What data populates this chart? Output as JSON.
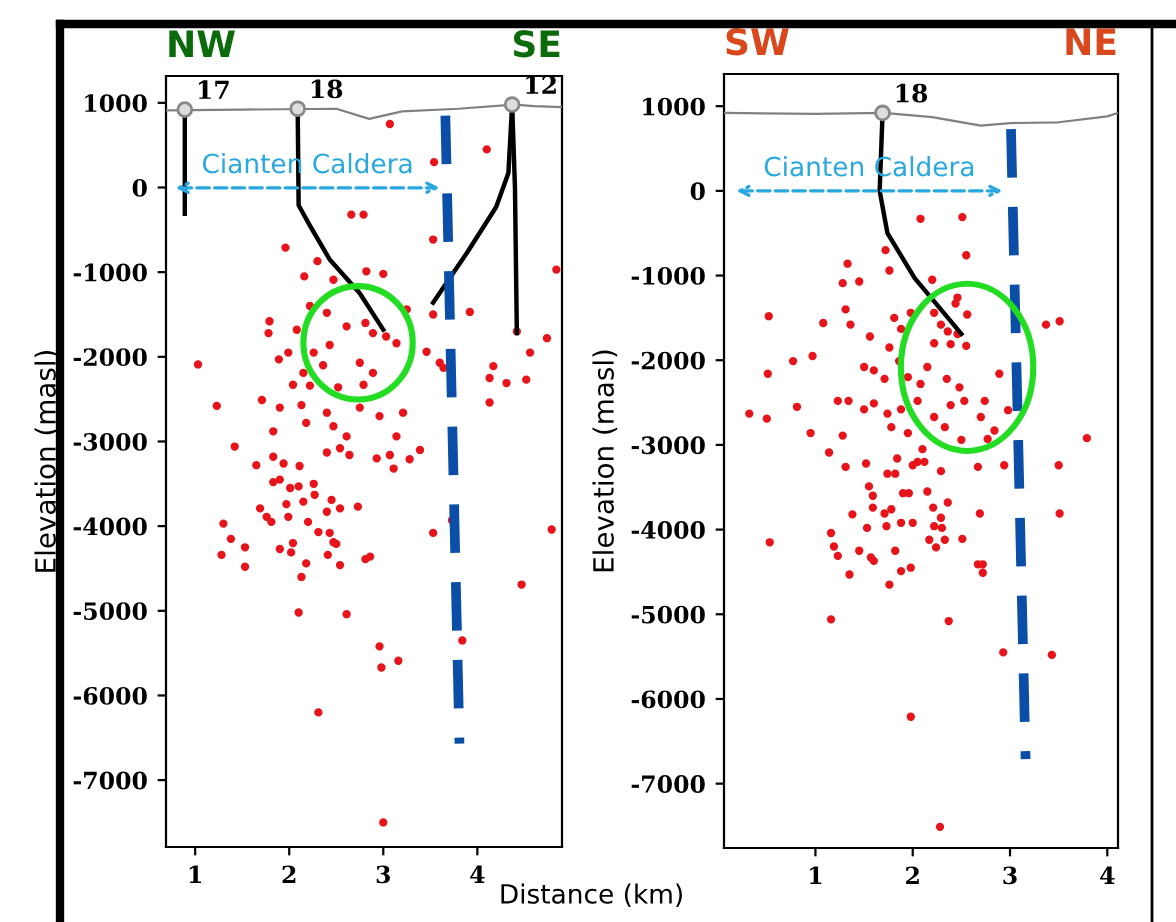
{
  "chart_data": [
    {
      "type": "scatter",
      "annotations": [
        "NW",
        "SE",
        "Cianten Caldera"
      ],
      "ylabel": "Elevation (masl)",
      "xlabel": "Distance (km)",
      "xlim": [
        0.69,
        4.9
      ],
      "ylim": [
        -7790,
        1317
      ],
      "xticks": [
        1,
        2,
        3,
        4
      ],
      "yticks": [
        -7000,
        -6000,
        -5000,
        -4000,
        -3000,
        -2000,
        -1000,
        0,
        1000
      ],
      "grid": false,
      "legend": false,
      "series": [
        {
          "type": "line",
          "color": "#808080",
          "x": [
            0.69,
            1.5,
            2.5,
            2.85,
            3.2,
            3.8,
            4.4,
            4.6,
            4.9
          ],
          "values": [
            910,
            920,
            930,
            810,
            900,
            930,
            980,
            960,
            950
          ]
        },
        {
          "color": "#e8141c",
          "marker": "circle",
          "x": [
            3.07,
            3.54,
            4.1,
            2.66,
            2.79,
            1.96,
            3.53,
            2.3,
            2.16,
            2.82,
            3.0,
            2.47,
            4.84,
            1.79,
            1.78,
            2.08,
            2.22,
            2.4,
            2.61,
            2.81,
            2.89,
            3.03,
            3.14,
            3.25,
            3.53,
            3.92,
            3.46,
            1.89,
            1.99,
            2.26,
            2.43,
            2.75,
            2.89,
            2.36,
            2.15,
            2.04,
            2.22,
            2.52,
            2.79,
            3.6,
            3.64,
            1.03,
            4.17,
            4.13,
            4.31,
            4.56,
            4.74,
            4.42,
            4.52,
            4.13,
            1.71,
            1.9,
            2.13,
            2.4,
            2.75,
            2.96,
            3.21,
            1.23,
            1.83,
            2.18,
            2.47,
            2.61,
            3.14,
            1.42,
            1.65,
            1.83,
            1.94,
            2.11,
            2.4,
            2.54,
            2.64,
            2.93,
            3.07,
            3.11,
            3.28,
            3.39,
            1.83,
            1.9,
            2.01,
            2.1,
            2.26,
            2.27,
            1.69,
            1.76,
            1.81,
            1.97,
            1.99,
            2.15,
            2.2,
            2.4,
            2.45,
            2.54,
            2.73,
            2.31,
            2.43,
            2.47,
            2.5,
            1.3,
            1.38,
            1.28,
            1.53,
            1.53,
            1.9,
            2.02,
            2.04,
            2.18,
            2.13,
            2.41,
            2.54,
            2.81,
            2.86,
            2.1,
            2.61,
            2.96,
            3.16,
            2.98,
            2.31,
            3.0,
            3.73,
            3.53,
            4.79,
            4.47,
            3.84
          ],
          "values": [
            750,
            300,
            450,
            -320,
            -320,
            -710,
            -615,
            -870,
            -1050,
            -990,
            -1020,
            -1090,
            -970,
            -1580,
            -1720,
            -1680,
            -1400,
            -1480,
            -1640,
            -1600,
            -1720,
            -1760,
            -1840,
            -1440,
            -1500,
            -1470,
            -1940,
            -2030,
            -1950,
            -1950,
            -1860,
            -2070,
            -2190,
            -2100,
            -2190,
            -2330,
            -2340,
            -2360,
            -2330,
            -2070,
            -2130,
            -2090,
            -2110,
            -2250,
            -2310,
            -1950,
            -1780,
            -1700,
            -2270,
            -2540,
            -2510,
            -2600,
            -2570,
            -2660,
            -2600,
            -2700,
            -2660,
            -2580,
            -2880,
            -2780,
            -2820,
            -2940,
            -2940,
            -3060,
            -3280,
            -3180,
            -3260,
            -3290,
            -3130,
            -3080,
            -3160,
            -3200,
            -3160,
            -3320,
            -3210,
            -3100,
            -3480,
            -3450,
            -3550,
            -3530,
            -3500,
            -3630,
            -3790,
            -3890,
            -3950,
            -3740,
            -3890,
            -3710,
            -3950,
            -3830,
            -3690,
            -3790,
            -3770,
            -4070,
            -4080,
            -4190,
            -4210,
            -3970,
            -4150,
            -4340,
            -4250,
            -4480,
            -4270,
            -4310,
            -4200,
            -4440,
            -4600,
            -4340,
            -4460,
            -4390,
            -4360,
            -5020,
            -5040,
            -5420,
            -5590,
            -5670,
            -6200,
            -7500,
            -3930,
            -4080,
            -4040,
            -4690,
            -5350
          ]
        },
        {
          "type": "line",
          "name": "17",
          "color": "#000000",
          "x": [
            0.89,
            0.89
          ],
          "values": [
            920,
            -310
          ]
        },
        {
          "type": "line",
          "name": "18",
          "color": "#000000",
          "x": [
            2.09,
            2.1,
            2.22,
            2.43,
            2.75,
            3.0
          ],
          "values": [
            930,
            -210,
            -450,
            -850,
            -1250,
            -1680
          ]
        },
        {
          "type": "line",
          "name": "12",
          "color": "#000000",
          "x": [
            4.37,
            4.4,
            4.42
          ],
          "values": [
            980,
            0,
            -1720
          ]
        },
        {
          "type": "line",
          "color": "#000000",
          "x": [
            4.37,
            4.33,
            4.2,
            3.89,
            3.53
          ],
          "values": [
            980,
            170,
            -230,
            -770,
            -1360
          ]
        },
        {
          "type": "line",
          "color": "#0b4ea8",
          "line_style": "dashed",
          "x": [
            3.66,
            3.81
          ],
          "values": [
            850,
            -6570
          ]
        }
      ]
    },
    {
      "type": "scatter",
      "annotations": [
        "SW",
        "NE",
        "Cianten Caldera"
      ],
      "ylabel": "Elevation (masl)",
      "xlim": [
        0.06,
        4.11
      ],
      "ylim": [
        -7760,
        1380
      ],
      "xticks": [
        1,
        2,
        3,
        4
      ],
      "yticks": [
        -7000,
        -6000,
        -5000,
        -4000,
        -3000,
        -2000,
        -1000,
        0,
        1000
      ],
      "grid": false,
      "legend": false,
      "series": [
        {
          "type": "line",
          "color": "#808080",
          "x": [
            0.06,
            1.0,
            1.7,
            2.2,
            2.7,
            3.0,
            3.5,
            4.0,
            4.11
          ],
          "values": [
            920,
            910,
            920,
            870,
            770,
            800,
            810,
            880,
            920
          ]
        },
        {
          "color": "#e8141c",
          "marker": "circle",
          "x": [
            2.08,
            2.51,
            2.55,
            1.72,
            1.33,
            1.76,
            1.28,
            1.45,
            2.2,
            2.46,
            1.31,
            0.52,
            1.08,
            1.36,
            1.81,
            1.98,
            2.22,
            2.56,
            2.44,
            2.29,
            2.36,
            2.46,
            2.39,
            2.55,
            2.22,
            1.56,
            1.76,
            1.88,
            3.37,
            3.51,
            0.77,
            0.97,
            0.51,
            1.5,
            1.6,
            1.71,
            1.86,
            1.95,
            2.15,
            2.08,
            2.35,
            2.48,
            2.53,
            2.89,
            1.23,
            1.34,
            1.5,
            1.6,
            1.74,
            1.88,
            2.05,
            2.22,
            2.39,
            2.74,
            2.7,
            0.32,
            0.5,
            0.81,
            0.95,
            1.28,
            1.78,
            1.95,
            2.33,
            2.5,
            2.77,
            2.84,
            2.98,
            3.79,
            1.14,
            1.31,
            1.52,
            1.74,
            1.82,
            1.84,
            2.0,
            2.05,
            2.12,
            2.1,
            2.29,
            2.67,
            2.94,
            3.5,
            1.55,
            1.59,
            1.59,
            1.38,
            1.71,
            1.78,
            1.9,
            1.96,
            2.15,
            2.21,
            2.36,
            2.29,
            2.69,
            3.51,
            1.16,
            1.53,
            1.73,
            1.88,
            2.0,
            2.22,
            2.3,
            0.53,
            1.19,
            1.23,
            1.45,
            1.57,
            1.6,
            1.82,
            2.17,
            2.24,
            2.33,
            2.51,
            1.35,
            1.76,
            1.88,
            1.98,
            2.67,
            2.72,
            2.72,
            1.16,
            2.37,
            2.93,
            3.43,
            1.98,
            2.28
          ],
          "values": [
            -330,
            -310,
            -760,
            -700,
            -860,
            -940,
            -1090,
            -1070,
            -1050,
            -1260,
            -1400,
            -1480,
            -1560,
            -1580,
            -1500,
            -1440,
            -1440,
            -1460,
            -1330,
            -1580,
            -1660,
            -1690,
            -1810,
            -1830,
            -1800,
            -1720,
            -1850,
            -1630,
            -1580,
            -1540,
            -2010,
            -1950,
            -2160,
            -2080,
            -2120,
            -2220,
            -2010,
            -2200,
            -2080,
            -2280,
            -2220,
            -2320,
            -2480,
            -2160,
            -2480,
            -2480,
            -2580,
            -2510,
            -2630,
            -2580,
            -2480,
            -2670,
            -2530,
            -2480,
            -2670,
            -2630,
            -2690,
            -2550,
            -2860,
            -2890,
            -2790,
            -2860,
            -2790,
            -2940,
            -2930,
            -2830,
            -2590,
            -2920,
            -3090,
            -3260,
            -3220,
            -3340,
            -3340,
            -3160,
            -3240,
            -3200,
            -3200,
            -3050,
            -3310,
            -3260,
            -3240,
            -3240,
            -3490,
            -3600,
            -3740,
            -3820,
            -3810,
            -3760,
            -3570,
            -3570,
            -3550,
            -3740,
            -3680,
            -3860,
            -3810,
            -3810,
            -4040,
            -3980,
            -3960,
            -3920,
            -3920,
            -3960,
            -3980,
            -4150,
            -4200,
            -4310,
            -4250,
            -4330,
            -4370,
            -4250,
            -4120,
            -4210,
            -4120,
            -4110,
            -4530,
            -4650,
            -4490,
            -4450,
            -4410,
            -4410,
            -4510,
            -5060,
            -5080,
            -5450,
            -5480,
            -6210,
            -7510
          ]
        },
        {
          "type": "line",
          "name": "18",
          "color": "#000000",
          "x": [
            1.69,
            1.66,
            1.74,
            2.02,
            2.5
          ],
          "values": [
            920,
            0,
            -500,
            -1030,
            -1690
          ]
        },
        {
          "type": "line",
          "color": "#0b4ea8",
          "line_style": "dashed",
          "x": [
            3.01,
            3.16
          ],
          "values": [
            730,
            -6710
          ]
        }
      ]
    }
  ]
}
